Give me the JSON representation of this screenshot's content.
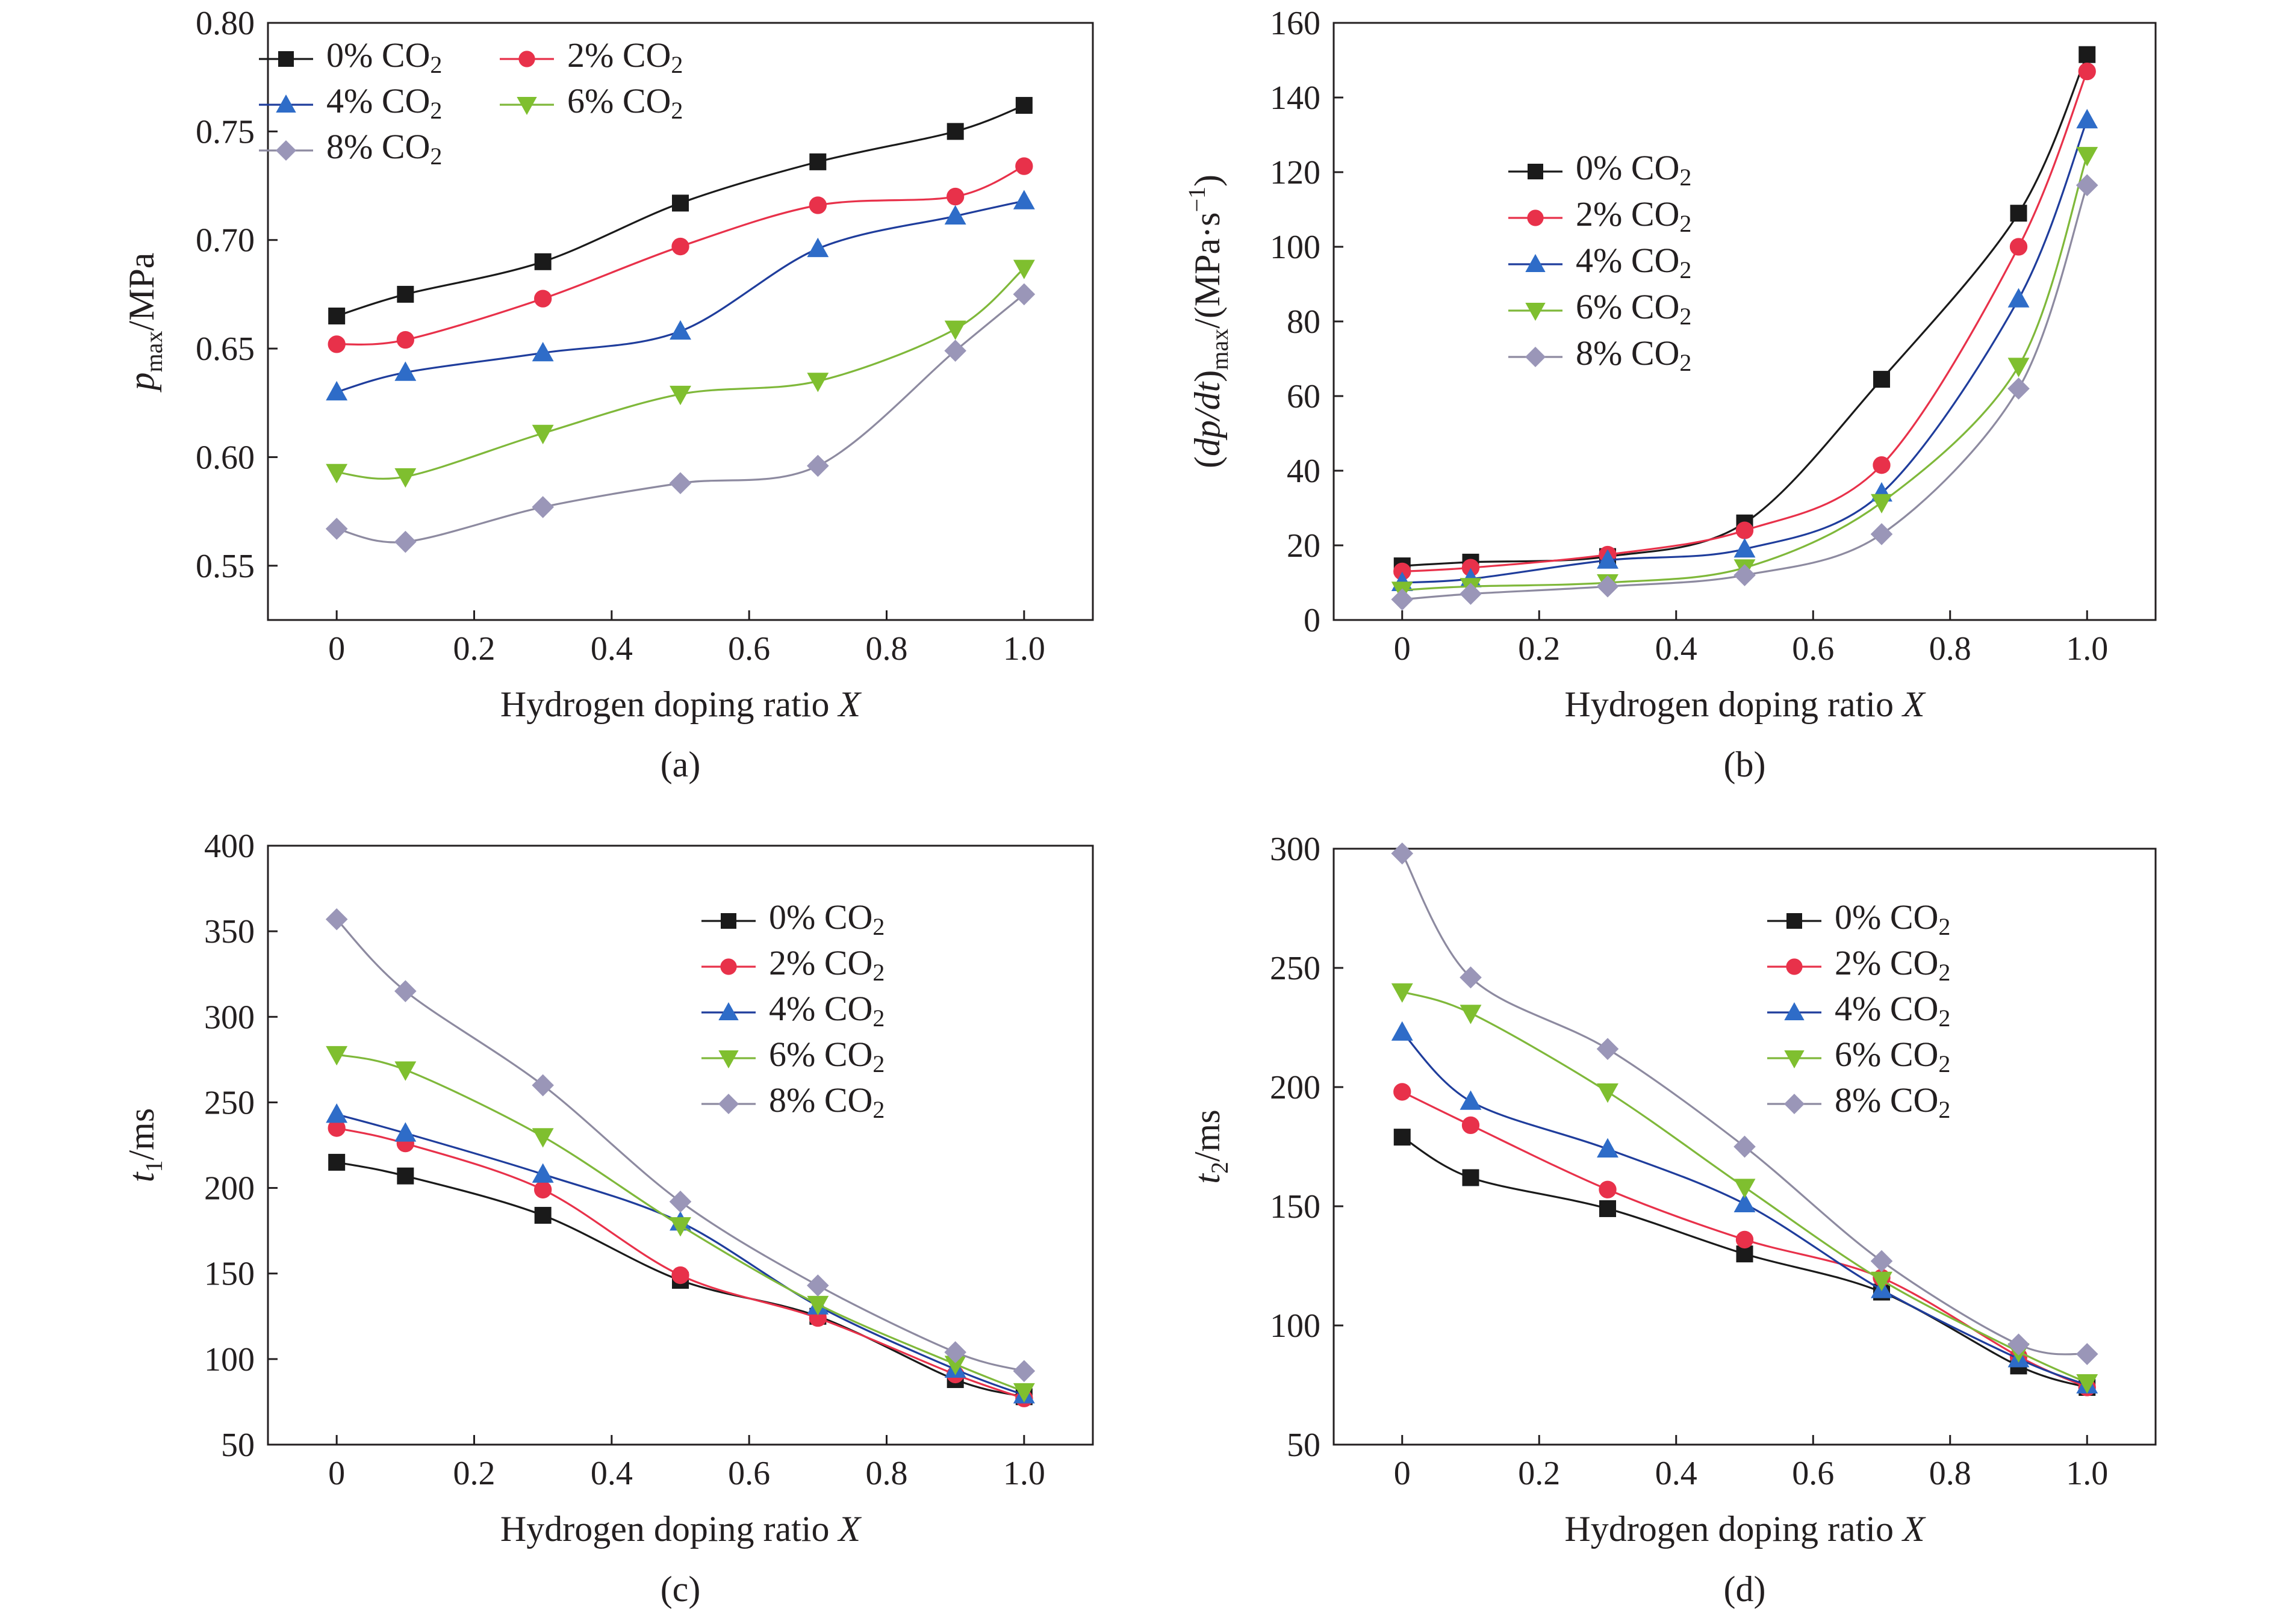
{
  "chart_data": [
    {
      "type": "line",
      "caption": "(a)",
      "xlabel": "Hydrogen doping ratio X",
      "ylabel": "p_max/MPa",
      "xlim": [
        -0.1,
        1.1
      ],
      "ylim": [
        0.525,
        0.8
      ],
      "x_ticks": [
        0,
        0.2,
        0.4,
        0.6,
        0.8,
        1.0
      ],
      "x_tick_labels": [
        "0",
        "0.2",
        "0.4",
        "0.6",
        "0.8",
        "1.0"
      ],
      "y_ticks": [
        0.55,
        0.6,
        0.65,
        0.7,
        0.75,
        0.8
      ],
      "y_tick_labels": [
        "0.55",
        "0.60",
        "0.65",
        "0.70",
        "0.75",
        "0.80"
      ],
      "legend_position": "top-left",
      "legend_layout": "two-column",
      "x": [
        0,
        0.1,
        0.3,
        0.5,
        0.7,
        0.9,
        1.0
      ],
      "series": [
        {
          "name": "0% CO2",
          "values": [
            0.665,
            0.675,
            0.69,
            0.717,
            0.736,
            0.75,
            0.762
          ]
        },
        {
          "name": "2% CO2",
          "values": [
            0.652,
            0.654,
            0.673,
            0.697,
            0.716,
            0.72,
            0.734
          ]
        },
        {
          "name": "4% CO2",
          "values": [
            0.63,
            0.639,
            0.648,
            0.658,
            0.696,
            0.711,
            0.718
          ]
        },
        {
          "name": "6% CO2",
          "values": [
            0.593,
            0.591,
            0.611,
            0.629,
            0.635,
            0.659,
            0.687
          ]
        },
        {
          "name": "8% CO2",
          "values": [
            0.567,
            0.561,
            0.577,
            0.588,
            0.596,
            0.649,
            0.675
          ]
        }
      ]
    },
    {
      "type": "line",
      "caption": "(b)",
      "xlabel": "Hydrogen doping ratio X",
      "ylabel": "(dp/dt)max/(MPa·s−1)",
      "xlim": [
        -0.1,
        1.1
      ],
      "ylim": [
        0,
        160
      ],
      "x_ticks": [
        0,
        0.2,
        0.4,
        0.6,
        0.8,
        1.0
      ],
      "x_tick_labels": [
        "0",
        "0.2",
        "0.4",
        "0.6",
        "0.8",
        "1.0"
      ],
      "y_ticks": [
        0,
        20,
        40,
        60,
        80,
        100,
        120,
        140,
        160
      ],
      "y_tick_labels": [
        "0",
        "20",
        "40",
        "60",
        "80",
        "100",
        "120",
        "140",
        "160"
      ],
      "legend_position": "upper-left-center",
      "legend_layout": "one-column",
      "x": [
        0,
        0.1,
        0.3,
        0.5,
        0.7,
        0.9,
        1.0
      ],
      "series": [
        {
          "name": "0% CO2",
          "values": [
            14.5,
            15.5,
            17.0,
            26.0,
            64.5,
            109.0,
            151.5
          ]
        },
        {
          "name": "2% CO2",
          "values": [
            13.0,
            14.0,
            17.5,
            24.0,
            41.5,
            100.0,
            147.0
          ]
        },
        {
          "name": "4% CO2",
          "values": [
            10.0,
            11.0,
            16.0,
            19.0,
            34.0,
            86.0,
            134.0
          ]
        },
        {
          "name": "6% CO2",
          "values": [
            8.0,
            9.0,
            10.0,
            14.0,
            31.5,
            68.0,
            124.5
          ]
        },
        {
          "name": "8% CO2",
          "values": [
            5.5,
            7.0,
            9.0,
            12.0,
            23.0,
            62.0,
            116.5
          ]
        }
      ]
    },
    {
      "type": "line",
      "caption": "(c)",
      "xlabel": "Hydrogen doping ratio X",
      "ylabel": "t1/ms",
      "xlim": [
        -0.1,
        1.1
      ],
      "ylim": [
        50,
        400
      ],
      "x_ticks": [
        0,
        0.2,
        0.4,
        0.6,
        0.8,
        1.0
      ],
      "x_tick_labels": [
        "0",
        "0.2",
        "0.4",
        "0.6",
        "0.8",
        "1.0"
      ],
      "y_ticks": [
        50,
        100,
        150,
        200,
        250,
        300,
        350,
        400
      ],
      "y_tick_labels": [
        "50",
        "100",
        "150",
        "200",
        "250",
        "300",
        "350",
        "400"
      ],
      "legend_position": "top-right",
      "legend_layout": "one-column",
      "x": [
        0,
        0.1,
        0.3,
        0.5,
        0.7,
        0.9,
        1.0
      ],
      "series": [
        {
          "name": "0% CO2",
          "values": [
            215,
            207,
            184,
            146,
            125,
            88,
            78
          ]
        },
        {
          "name": "2% CO2",
          "values": [
            235,
            226,
            199,
            149,
            124,
            91,
            77
          ]
        },
        {
          "name": "4% CO2",
          "values": [
            243,
            232,
            208,
            180,
            131,
            94,
            79
          ]
        },
        {
          "name": "6% CO2",
          "values": [
            278,
            269,
            230,
            178,
            132,
            97,
            81
          ]
        },
        {
          "name": "8% CO2",
          "values": [
            357,
            315,
            260,
            192,
            143,
            104,
            93
          ]
        }
      ]
    },
    {
      "type": "line",
      "caption": "(d)",
      "xlabel": "Hydrogen doping ratio X",
      "ylabel": "t2/ms",
      "xlim": [
        -0.1,
        1.1
      ],
      "ylim": [
        50,
        300
      ],
      "x_ticks": [
        0,
        0.2,
        0.4,
        0.6,
        0.8,
        1.0
      ],
      "x_tick_labels": [
        "0",
        "0.2",
        "0.4",
        "0.6",
        "0.8",
        "1.0"
      ],
      "y_ticks": [
        50,
        100,
        150,
        200,
        250,
        300
      ],
      "y_tick_labels": [
        "50",
        "100",
        "150",
        "200",
        "250",
        "300"
      ],
      "legend_position": "top-right",
      "legend_layout": "one-column",
      "x": [
        0,
        0.1,
        0.3,
        0.5,
        0.7,
        0.9,
        1.0
      ],
      "series": [
        {
          "name": "0% CO2",
          "values": [
            179,
            162,
            149,
            130,
            114,
            83,
            74
          ]
        },
        {
          "name": "2% CO2",
          "values": [
            198,
            184,
            157,
            136,
            120,
            87,
            74
          ]
        },
        {
          "name": "4% CO2",
          "values": [
            223,
            194,
            174,
            151,
            115,
            86,
            75
          ]
        },
        {
          "name": "6% CO2",
          "values": [
            240,
            231,
            198,
            158,
            119,
            89,
            76
          ]
        },
        {
          "name": "8% CO2",
          "values": [
            298,
            246,
            216,
            175,
            127,
            92,
            88
          ]
        }
      ]
    }
  ],
  "series_styles": [
    {
      "color": "#1a1a1a",
      "fill": "#1a1a1a",
      "marker": "square"
    },
    {
      "color": "#e8314a",
      "fill": "#e8314a",
      "marker": "circle"
    },
    {
      "color": "#1f3d9c",
      "fill": "#2e6cc8",
      "marker": "triangle-up"
    },
    {
      "color": "#7fb83a",
      "fill": "#7fbf2f",
      "marker": "triangle-down"
    },
    {
      "color": "#8d8aa0",
      "fill": "#9a96b8",
      "marker": "diamond"
    }
  ]
}
